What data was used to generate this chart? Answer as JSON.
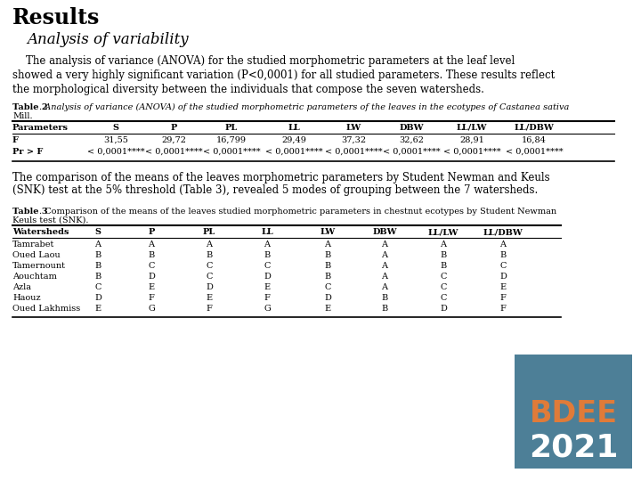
{
  "title": "Results",
  "subtitle": "Analysis of variability",
  "body_text": [
    "    The analysis of variance (ANOVA) for the studied morphometric parameters at the leaf level",
    "showed a very highly significant variation (P<0,0001) for all studied parameters. These results reflect",
    "the morphological diversity between the individuals that compose the seven watersheds."
  ],
  "table2_caption_bold": "Table 2",
  "table2_caption_rest": ". Analysis of variance (ANOVA) of the studied morphometric parameters of the leaves in the ecotypes of Castanea sativa",
  "table2_caption_line2": "Mill.",
  "table2_headers": [
    "Parameters",
    "S",
    "P",
    "PL",
    "LL",
    "LW",
    "DBW",
    "LL/LW",
    "LL/DBW"
  ],
  "table2_rows": [
    [
      "F",
      "31,55",
      "29,72",
      "16,799",
      "29,49",
      "37,32",
      "32,62",
      "28,91",
      "16,84"
    ],
    [
      "Pr > F",
      "< 0,0001****",
      "< 0,0001****",
      "< 0,0001****",
      "< 0,0001****",
      "< 0,0001****",
      "< 0,0001****",
      "< 0,0001****",
      "< 0,0001****"
    ]
  ],
  "middle_text": [
    "The comparison of the means of the leaves morphometric parameters by Student Newman and Keuls",
    "(SNK) test at the 5% threshold (Table 3), revealed 5 modes of grouping between the 7 watersheds."
  ],
  "table3_caption_bold": "Table 3",
  "table3_caption_rest": ". Comparison of the means of the leaves studied morphometric parameters in chestnut ecotypes by Student Newman",
  "table3_caption_line2": "Keuls test (SNK).",
  "table3_headers": [
    "Watersheds",
    "S",
    "P",
    "PL",
    "LL",
    "LW",
    "DBW",
    "LL/LW",
    "LL/DBW"
  ],
  "table3_rows": [
    [
      "Tamrabet",
      "A",
      "A",
      "A",
      "A",
      "A",
      "A",
      "A",
      "A"
    ],
    [
      "Oued Laou",
      "B",
      "B",
      "B",
      "B",
      "B",
      "A",
      "B",
      "B"
    ],
    [
      "Tamernount",
      "B",
      "C",
      "C",
      "C",
      "B",
      "A",
      "B",
      "C"
    ],
    [
      "Aouchtam",
      "B",
      "D",
      "C",
      "D",
      "B",
      "A",
      "C",
      "D"
    ],
    [
      "Azla",
      "C",
      "E",
      "D",
      "E",
      "C",
      "A",
      "C",
      "E"
    ],
    [
      "Haouz",
      "D",
      "F",
      "E",
      "F",
      "D",
      "B",
      "C",
      "F"
    ],
    [
      "Oued Lakhmiss",
      "E",
      "G",
      "F",
      "G",
      "E",
      "B",
      "D",
      "F"
    ]
  ],
  "badge_bg": "#4d7f97",
  "badge_text1": "BDEE",
  "badge_text1_color": "#e07b39",
  "badge_text2": "2021",
  "badge_text2_color": "#ffffff",
  "bg_color": "#ffffff"
}
